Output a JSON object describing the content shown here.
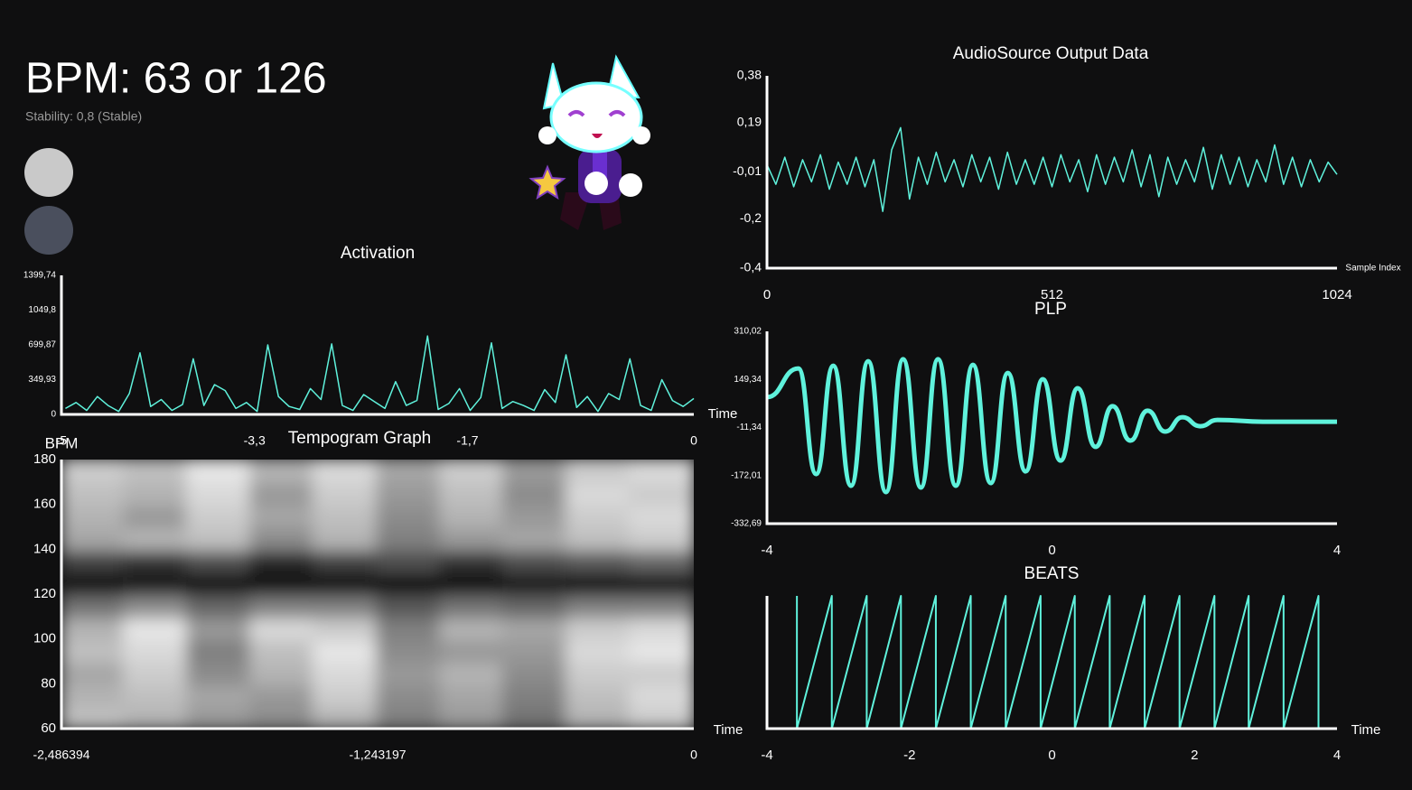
{
  "header": {
    "bpm": "BPM: 63 or 126",
    "stability": "Stability: 0,8 (Stable)"
  },
  "chart_data": [
    {
      "type": "line",
      "title": "Activation",
      "x_label": "Time",
      "color": "#5ff2dc",
      "x": [
        -4.72,
        -4.64,
        -4.56,
        -4.48,
        -4.4,
        -4.32,
        -4.24,
        -4.16,
        -4.08,
        -4,
        -3.92,
        -3.84,
        -3.76,
        -3.68,
        -3.6,
        -3.52,
        -3.44,
        -3.36,
        -3.28,
        -3.2,
        -3.12,
        -3.04,
        -2.96,
        -2.88,
        -2.8,
        -2.72,
        -2.64,
        -2.56,
        -2.48,
        -2.4,
        -2.32,
        -2.24,
        -2.16,
        -2.08,
        -2,
        -1.92,
        -1.84,
        -1.76,
        -1.68,
        -1.6,
        -1.52,
        -1.44,
        -1.36,
        -1.28,
        -1.2,
        -1.12,
        -1.04,
        -0.96,
        -0.88,
        -0.8,
        -0.72,
        -0.64,
        -0.56,
        -0.48,
        -0.4,
        -0.32,
        -0.24,
        -0.16,
        -0.08,
        0
      ],
      "values": [
        60,
        120,
        40,
        180,
        90,
        30,
        210,
        620,
        80,
        150,
        40,
        100,
        560,
        90,
        300,
        240,
        60,
        120,
        30,
        700,
        180,
        80,
        50,
        260,
        150,
        710,
        90,
        40,
        200,
        130,
        60,
        330,
        90,
        140,
        790,
        50,
        110,
        260,
        40,
        170,
        720,
        60,
        130,
        90,
        40,
        250,
        120,
        600,
        70,
        180,
        30,
        210,
        150,
        560,
        90,
        40,
        350,
        140,
        80,
        160
      ],
      "xlim": [
        -4.75,
        0
      ],
      "xticks": [
        {
          "value": -4.75,
          "label": "-5"
        },
        {
          "value": -3.3,
          "label": "-3,3"
        },
        {
          "value": -1.7,
          "label": "-1,7"
        },
        0
      ],
      "ylim": [
        0,
        1399.74
      ],
      "yticks": [
        0,
        {
          "value": 349.93,
          "label": "349,93"
        },
        {
          "value": 699.87,
          "label": "699,87"
        },
        {
          "value": 1049.8,
          "label": "1049,8"
        },
        {
          "value": 1399.74,
          "label": "1399,74"
        }
      ]
    },
    {
      "type": "heatmap",
      "title": "Tempogram Graph",
      "x_label": "Time",
      "y_label": "BPM",
      "x": [
        -2.362,
        -2.113,
        -1.865,
        -1.616,
        -1.368,
        -1.119,
        -0.87,
        -0.622,
        -0.373,
        -0.124
      ],
      "y": [
        65,
        75,
        85,
        95,
        105,
        115,
        125,
        135,
        145,
        155,
        165,
        175
      ],
      "z": [
        [
          0.75,
          0.7,
          0.6,
          0.55,
          0.7,
          0.5,
          0.6,
          0.45,
          0.7,
          0.8
        ],
        [
          0.7,
          0.75,
          0.65,
          0.6,
          0.8,
          0.55,
          0.65,
          0.5,
          0.75,
          0.85
        ],
        [
          0.65,
          0.8,
          0.55,
          0.7,
          0.85,
          0.6,
          0.7,
          0.55,
          0.8,
          0.8
        ],
        [
          0.75,
          0.85,
          0.5,
          0.75,
          0.9,
          0.55,
          0.6,
          0.6,
          0.85,
          0.9
        ],
        [
          0.7,
          0.9,
          0.6,
          0.85,
          0.8,
          0.5,
          0.7,
          0.65,
          0.8,
          0.85
        ],
        [
          0.45,
          0.55,
          0.4,
          0.5,
          0.5,
          0.35,
          0.45,
          0.4,
          0.5,
          0.5
        ],
        [
          0.05,
          0.08,
          0.04,
          0.06,
          0.05,
          0.03,
          0.06,
          0.08,
          0.05,
          0.06
        ],
        [
          0.25,
          0.2,
          0.3,
          0.15,
          0.25,
          0.3,
          0.2,
          0.3,
          0.35,
          0.4
        ],
        [
          0.65,
          0.7,
          0.75,
          0.55,
          0.7,
          0.5,
          0.6,
          0.65,
          0.75,
          0.8
        ],
        [
          0.7,
          0.6,
          0.8,
          0.65,
          0.75,
          0.55,
          0.7,
          0.6,
          0.8,
          0.85
        ],
        [
          0.75,
          0.7,
          0.85,
          0.6,
          0.8,
          0.6,
          0.75,
          0.55,
          0.85,
          0.8
        ],
        [
          0.8,
          0.75,
          0.9,
          0.7,
          0.85,
          0.65,
          0.8,
          0.6,
          0.8,
          0.85
        ]
      ],
      "xlim": [
        -2.486394,
        0
      ],
      "xticks": [
        {
          "value": -2.486394,
          "label": "-2,486394"
        },
        {
          "value": -1.243197,
          "label": "-1,243197"
        },
        0
      ],
      "ylim": [
        60,
        180
      ],
      "yticks": [
        60,
        80,
        100,
        120,
        140,
        160,
        180
      ]
    },
    {
      "type": "line",
      "title": "AudioSource Output Data",
      "x_label": "Sample Index",
      "color": "#5ff2dc",
      "x": [
        0,
        16,
        32,
        48,
        64,
        80,
        96,
        112,
        128,
        144,
        160,
        176,
        192,
        208,
        224,
        240,
        256,
        272,
        288,
        304,
        320,
        336,
        352,
        368,
        384,
        400,
        416,
        432,
        448,
        464,
        480,
        496,
        512,
        528,
        544,
        560,
        576,
        592,
        608,
        624,
        640,
        656,
        672,
        688,
        704,
        720,
        736,
        752,
        768,
        784,
        800,
        816,
        832,
        848,
        864,
        880,
        896,
        912,
        928,
        944,
        960,
        976,
        992,
        1008,
        1024
      ],
      "values": [
        0.02,
        -0.06,
        0.05,
        -0.07,
        0.04,
        -0.05,
        0.06,
        -0.08,
        0.03,
        -0.06,
        0.05,
        -0.07,
        0.04,
        -0.17,
        0.08,
        0.17,
        -0.12,
        0.05,
        -0.06,
        0.07,
        -0.05,
        0.04,
        -0.07,
        0.06,
        -0.05,
        0.05,
        -0.08,
        0.07,
        -0.06,
        0.04,
        -0.06,
        0.05,
        -0.07,
        0.06,
        -0.05,
        0.04,
        -0.09,
        0.06,
        -0.06,
        0.05,
        -0.05,
        0.08,
        -0.07,
        0.06,
        -0.11,
        0.05,
        -0.06,
        0.04,
        -0.05,
        0.09,
        -0.08,
        0.06,
        -0.06,
        0.05,
        -0.07,
        0.04,
        -0.05,
        0.1,
        -0.06,
        0.05,
        -0.07,
        0.04,
        -0.05,
        0.03,
        -0.02
      ],
      "xlim": [
        0,
        1024
      ],
      "xticks": [
        0,
        512,
        1024
      ],
      "ylim": [
        -0.4,
        0.38
      ],
      "yticks": [
        {
          "value": -0.4,
          "label": "-0,4"
        },
        {
          "value": -0.2,
          "label": "-0,2"
        },
        {
          "value": -0.01,
          "label": "-0,01"
        },
        {
          "value": 0.19,
          "label": "0,19"
        },
        {
          "value": 0.38,
          "label": "0,38"
        }
      ]
    },
    {
      "type": "line",
      "title": "PLP",
      "color": "#5ff2dc",
      "smooth": true,
      "x": [
        -4,
        -3.56,
        -3.31,
        -3.07,
        -2.82,
        -2.58,
        -2.33,
        -2.09,
        -1.84,
        -1.6,
        -1.35,
        -1.11,
        -0.86,
        -0.62,
        -0.37,
        -0.13,
        0.12,
        0.36,
        0.61,
        0.85,
        1.1,
        1.34,
        1.59,
        1.83,
        2.08,
        2.32,
        3,
        4
      ],
      "values": [
        90,
        186,
        -167,
        195,
        -206,
        210,
        -227,
        217,
        -212,
        217,
        -206,
        198,
        -197,
        171,
        -158,
        150,
        -122,
        120,
        -76,
        60,
        -55,
        45,
        -25,
        23,
        -7,
        14,
        8,
        8
      ],
      "xlim": [
        -4,
        4
      ],
      "xticks": [
        -4,
        0,
        4
      ],
      "ylim": [
        -332.69,
        310.02
      ],
      "yticks": [
        {
          "value": -332.69,
          "label": "-332,69"
        },
        {
          "value": -172.01,
          "label": "-172,01"
        },
        {
          "value": -11.34,
          "label": "-11,34"
        },
        {
          "value": 149.34,
          "label": "149,34"
        },
        {
          "value": 310.02,
          "label": "310,02"
        }
      ]
    },
    {
      "type": "line",
      "title": "BEATS",
      "x_label": "Time",
      "color": "#5ff2dc",
      "x": [
        -3.58,
        -3.58,
        -3.09,
        -3.09,
        -2.6,
        -2.6,
        -2.12,
        -2.12,
        -1.63,
        -1.63,
        -1.14,
        -1.14,
        -0.65,
        -0.65,
        -0.16,
        -0.16,
        0.32,
        0.32,
        0.81,
        0.81,
        1.3,
        1.3,
        1.79,
        1.79,
        2.28,
        2.28,
        2.76,
        2.76,
        3.25,
        3.25,
        3.74,
        3.74
      ],
      "values": [
        1,
        0,
        1,
        0,
        1,
        0,
        1,
        0,
        1,
        0,
        1,
        0,
        1,
        0,
        1,
        0,
        1,
        0,
        1,
        0,
        1,
        0,
        1,
        0,
        1,
        0,
        1,
        0,
        1,
        0,
        1,
        0
      ],
      "xlim": [
        -4,
        4
      ],
      "xticks": [
        -4,
        -2,
        0,
        2,
        4
      ],
      "ylim": [
        0,
        1
      ]
    }
  ]
}
